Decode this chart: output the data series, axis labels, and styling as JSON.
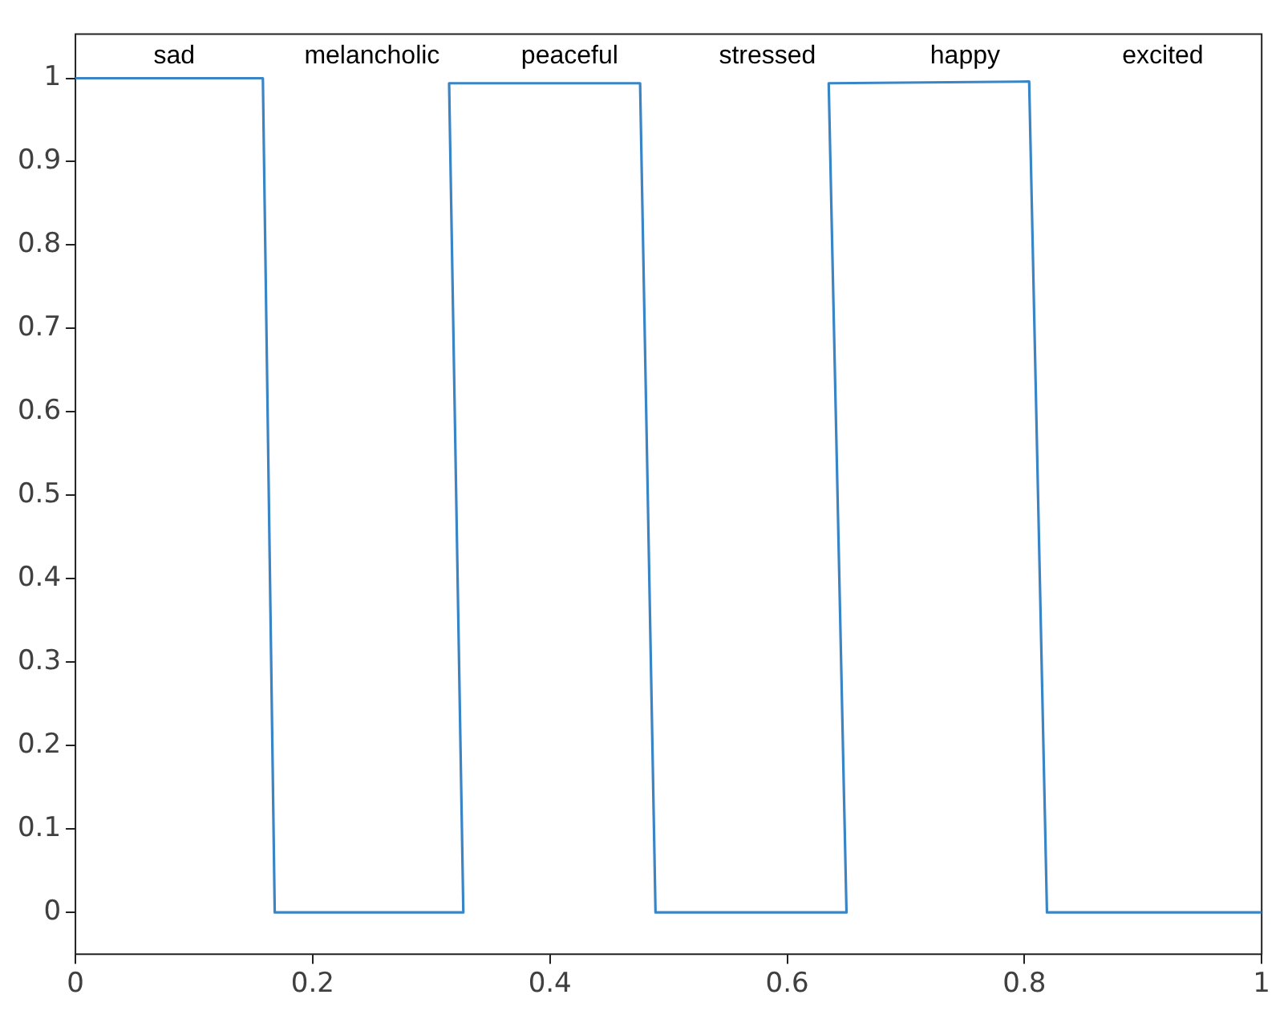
{
  "chart_data": {
    "type": "line",
    "x": [
      0,
      0.158,
      0.168,
      0.327,
      0.315,
      0.476,
      0.489,
      0.65,
      0.635,
      0.804,
      0.819,
      1
    ],
    "series": [
      {
        "color": "#3a85c6",
        "values": [
          1,
          1,
          0,
          0,
          0.994,
          0.994,
          0,
          0,
          0.994,
          0.996,
          0,
          0
        ]
      }
    ],
    "xlim": [
      0,
      1
    ],
    "ylim": [
      -0.05,
      1.053
    ],
    "xticks": [
      0,
      0.2,
      0.4,
      0.6,
      0.8,
      1
    ],
    "yticks": [
      0,
      0.1,
      0.2,
      0.3,
      0.4,
      0.5,
      0.6,
      0.7,
      0.8,
      0.9,
      1
    ],
    "grid": false,
    "legend": false,
    "marker": "none",
    "line_style": "solid",
    "annotations": [
      "sad",
      "melancholic",
      "peaceful",
      "stressed",
      "happy",
      "excited"
    ]
  }
}
